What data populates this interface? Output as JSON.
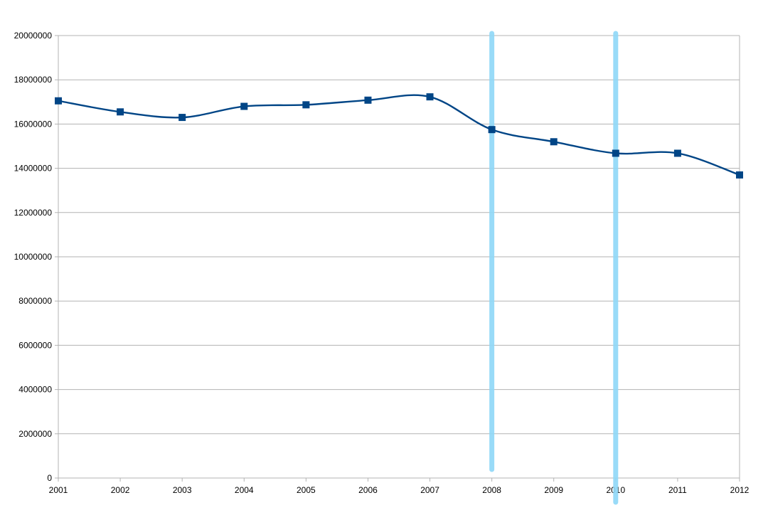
{
  "chart_data": {
    "type": "line",
    "categories": [
      "2001",
      "2002",
      "2003",
      "2004",
      "2005",
      "2006",
      "2007",
      "2008",
      "2009",
      "2010",
      "2011",
      "2012"
    ],
    "series": [
      {
        "values": [
          17050000,
          16550000,
          16300000,
          16800000,
          16870000,
          17080000,
          17230000,
          15750000,
          15200000,
          14680000,
          14680000,
          13700000
        ],
        "color": "#004586",
        "marker": "square",
        "smooth": true
      }
    ],
    "ylim": [
      0,
      20000000
    ],
    "yticks": [
      0,
      2000000,
      4000000,
      6000000,
      8000000,
      10000000,
      12000000,
      14000000,
      16000000,
      18000000,
      20000000
    ],
    "ytick_labels": [
      "0",
      "2000000",
      "4000000",
      "6000000",
      "8000000",
      "10000000",
      "12000000",
      "14000000",
      "16000000",
      "18000000",
      "20000000"
    ],
    "grid": true,
    "gridline_color": "#b3b3b3",
    "highlight_bands": [
      {
        "x": "2008",
        "color": "#8fd8f8"
      },
      {
        "x": "2010",
        "color": "#8fd8f8"
      }
    ]
  }
}
